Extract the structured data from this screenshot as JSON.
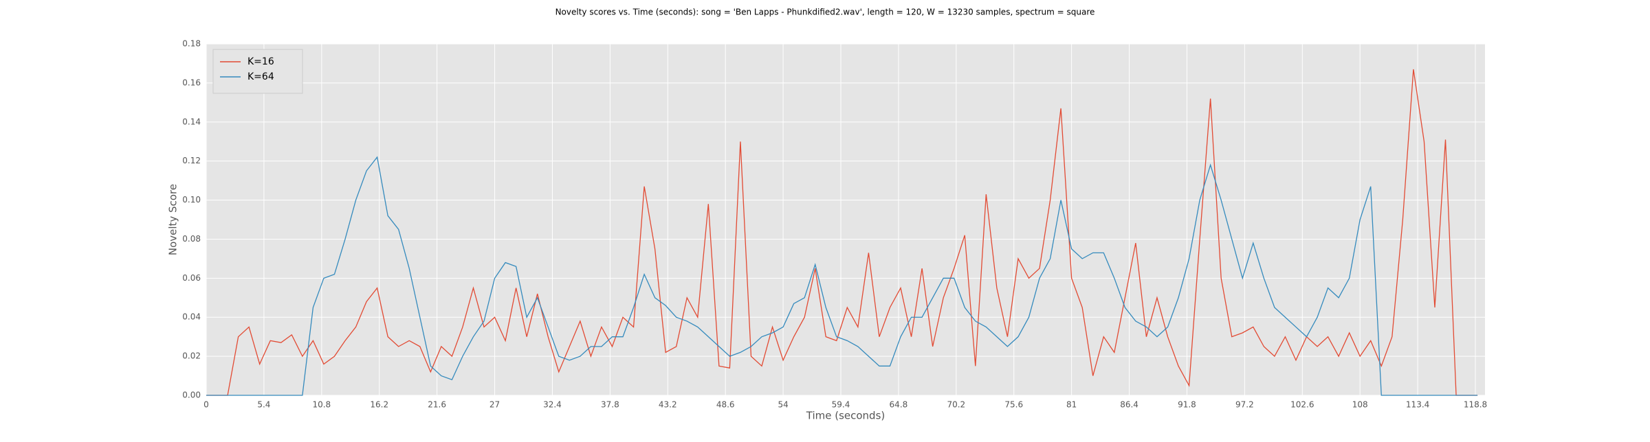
{
  "chart_data": {
    "type": "line",
    "title": "Novelty scores vs. Time (seconds): song = 'Ben Lapps - Phunkdified2.wav', length = 120, W = 13230 samples, spectrum = square",
    "x_label": "Time (seconds)",
    "y_label": "Novelty Score",
    "x": [
      0,
      1,
      2,
      3,
      4,
      5,
      6,
      7,
      8,
      9,
      10,
      11,
      12,
      13,
      14,
      15,
      16,
      17,
      18,
      19,
      20,
      21,
      22,
      23,
      24,
      25,
      26,
      27,
      28,
      29,
      30,
      31,
      32,
      33,
      34,
      35,
      36,
      37,
      38,
      39,
      40,
      41,
      42,
      43,
      44,
      45,
      46,
      47,
      48,
      49,
      50,
      51,
      52,
      53,
      54,
      55,
      56,
      57,
      58,
      59,
      60,
      61,
      62,
      63,
      64,
      65,
      66,
      67,
      68,
      69,
      70,
      71,
      72,
      73,
      74,
      75,
      76,
      77,
      78,
      79,
      80,
      81,
      82,
      83,
      84,
      85,
      86,
      87,
      88,
      89,
      90,
      91,
      92,
      93,
      94,
      95,
      96,
      97,
      98,
      99,
      100,
      101,
      102,
      103,
      104,
      105,
      106,
      107,
      108,
      109,
      110,
      111,
      112,
      113,
      114,
      115,
      116,
      117,
      118,
      119
    ],
    "series": [
      {
        "name": "K=16",
        "color": "#e24a33",
        "values": [
          0,
          0,
          0,
          0.03,
          0.035,
          0.016,
          0.028,
          0.027,
          0.031,
          0.02,
          0.028,
          0.016,
          0.02,
          0.028,
          0.035,
          0.048,
          0.055,
          0.03,
          0.025,
          0.028,
          0.025,
          0.012,
          0.025,
          0.02,
          0.035,
          0.055,
          0.035,
          0.04,
          0.028,
          0.055,
          0.03,
          0.052,
          0.03,
          0.012,
          0.025,
          0.038,
          0.02,
          0.035,
          0.025,
          0.04,
          0.035,
          0.107,
          0.075,
          0.022,
          0.025,
          0.05,
          0.04,
          0.098,
          0.015,
          0.014,
          0.13,
          0.02,
          0.015,
          0.035,
          0.018,
          0.03,
          0.04,
          0.065,
          0.03,
          0.028,
          0.045,
          0.035,
          0.073,
          0.03,
          0.045,
          0.055,
          0.03,
          0.065,
          0.025,
          0.05,
          0.065,
          0.082,
          0.015,
          0.103,
          0.055,
          0.03,
          0.07,
          0.06,
          0.065,
          0.1,
          0.147,
          0.06,
          0.045,
          0.01,
          0.03,
          0.022,
          0.05,
          0.078,
          0.03,
          0.05,
          0.03,
          0.015,
          0.005,
          0.08,
          0.152,
          0.06,
          0.03,
          0.032,
          0.035,
          0.025,
          0.02,
          0.03,
          0.018,
          0.03,
          0.025,
          0.03,
          0.02,
          0.032,
          0.02,
          0.028,
          0.015,
          0.03,
          0.09,
          0.167,
          0.13,
          0.045,
          0.131,
          0,
          0,
          0
        ]
      },
      {
        "name": "K=64",
        "color": "#348abd",
        "values": [
          0,
          0,
          0,
          0,
          0,
          0,
          0,
          0,
          0,
          0,
          0.045,
          0.06,
          0.062,
          0.08,
          0.1,
          0.115,
          0.122,
          0.092,
          0.085,
          0.065,
          0.04,
          0.015,
          0.01,
          0.008,
          0.02,
          0.03,
          0.038,
          0.06,
          0.068,
          0.066,
          0.04,
          0.05,
          0.035,
          0.02,
          0.018,
          0.02,
          0.025,
          0.025,
          0.03,
          0.03,
          0.045,
          0.062,
          0.05,
          0.046,
          0.04,
          0.038,
          0.035,
          0.03,
          0.025,
          0.02,
          0.022,
          0.025,
          0.03,
          0.032,
          0.035,
          0.047,
          0.05,
          0.067,
          0.045,
          0.03,
          0.028,
          0.025,
          0.02,
          0.015,
          0.015,
          0.03,
          0.04,
          0.04,
          0.05,
          0.06,
          0.06,
          0.045,
          0.038,
          0.035,
          0.03,
          0.025,
          0.03,
          0.04,
          0.06,
          0.07,
          0.1,
          0.075,
          0.07,
          0.073,
          0.073,
          0.06,
          0.045,
          0.038,
          0.035,
          0.03,
          0.035,
          0.05,
          0.07,
          0.1,
          0.118,
          0.1,
          0.08,
          0.06,
          0.078,
          0.06,
          0.045,
          0.04,
          0.035,
          0.03,
          0.04,
          0.055,
          0.05,
          0.06,
          0.09,
          0.107,
          0,
          0,
          0,
          0,
          0,
          0,
          0,
          0,
          0,
          0
        ]
      }
    ],
    "xlim": [
      0,
      119.7
    ],
    "ylim": [
      0,
      0.18
    ],
    "xticks": [
      0,
      5.4,
      10.8,
      16.2,
      21.6,
      27,
      32.4,
      37.8,
      43.2,
      48.6,
      54,
      59.4,
      64.8,
      70.2,
      75.6,
      81,
      86.4,
      91.8,
      97.2,
      102.6,
      108,
      113.4,
      118.8
    ],
    "yticks": [
      {
        "value": 0,
        "label": "0.00"
      },
      {
        "value": 0.02,
        "label": "0.02"
      },
      {
        "value": 0.04,
        "label": "0.04"
      },
      {
        "value": 0.06,
        "label": "0.06"
      },
      {
        "value": 0.08,
        "label": "0.08"
      },
      {
        "value": 0.1,
        "label": "0.10"
      },
      {
        "value": 0.12,
        "label": "0.12"
      },
      {
        "value": 0.14,
        "label": "0.14"
      },
      {
        "value": 0.16,
        "label": "0.16"
      },
      {
        "value": 0.18,
        "label": "0.18"
      }
    ],
    "grid": true,
    "legend": "upper-left"
  }
}
